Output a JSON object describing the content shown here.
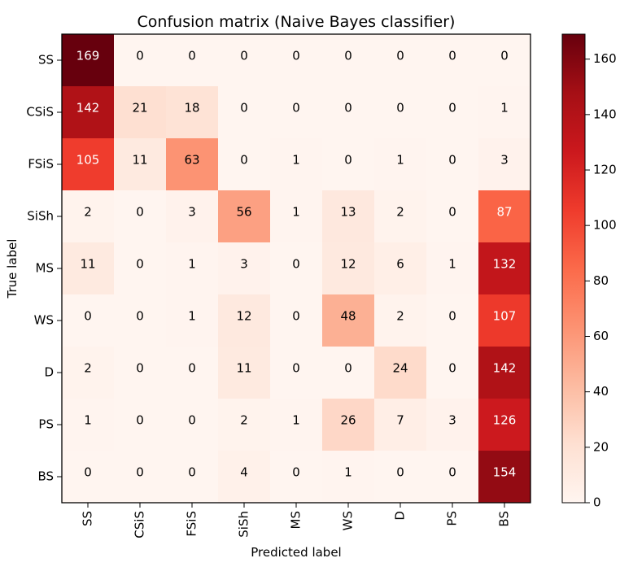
{
  "chart_data": {
    "type": "heatmap",
    "title": "Confusion matrix (Naive Bayes classifier)",
    "xlabel": "Predicted label",
    "ylabel": "True label",
    "row_labels": [
      "SS",
      "CSiS",
      "FSiS",
      "SiSh",
      "MS",
      "WS",
      "D",
      "PS",
      "BS"
    ],
    "col_labels": [
      "SS",
      "CSiS",
      "FSiS",
      "SiSh",
      "MS",
      "WS",
      "D",
      "PS",
      "BS"
    ],
    "values": [
      [
        169,
        0,
        0,
        0,
        0,
        0,
        0,
        0,
        0
      ],
      [
        142,
        21,
        18,
        0,
        0,
        0,
        0,
        0,
        1
      ],
      [
        105,
        11,
        63,
        0,
        1,
        0,
        1,
        0,
        3
      ],
      [
        2,
        0,
        3,
        56,
        1,
        13,
        2,
        0,
        87
      ],
      [
        11,
        0,
        1,
        3,
        0,
        12,
        6,
        1,
        132
      ],
      [
        0,
        0,
        1,
        12,
        0,
        48,
        2,
        0,
        107
      ],
      [
        2,
        0,
        0,
        11,
        0,
        0,
        24,
        0,
        142
      ],
      [
        1,
        0,
        0,
        2,
        1,
        26,
        7,
        3,
        126
      ],
      [
        0,
        0,
        0,
        4,
        0,
        1,
        0,
        0,
        154
      ]
    ],
    "colorscale": "Reds",
    "colorbar": {
      "range": [
        0,
        169
      ],
      "ticks": [
        0,
        20,
        40,
        60,
        80,
        100,
        120,
        140,
        160
      ]
    }
  }
}
